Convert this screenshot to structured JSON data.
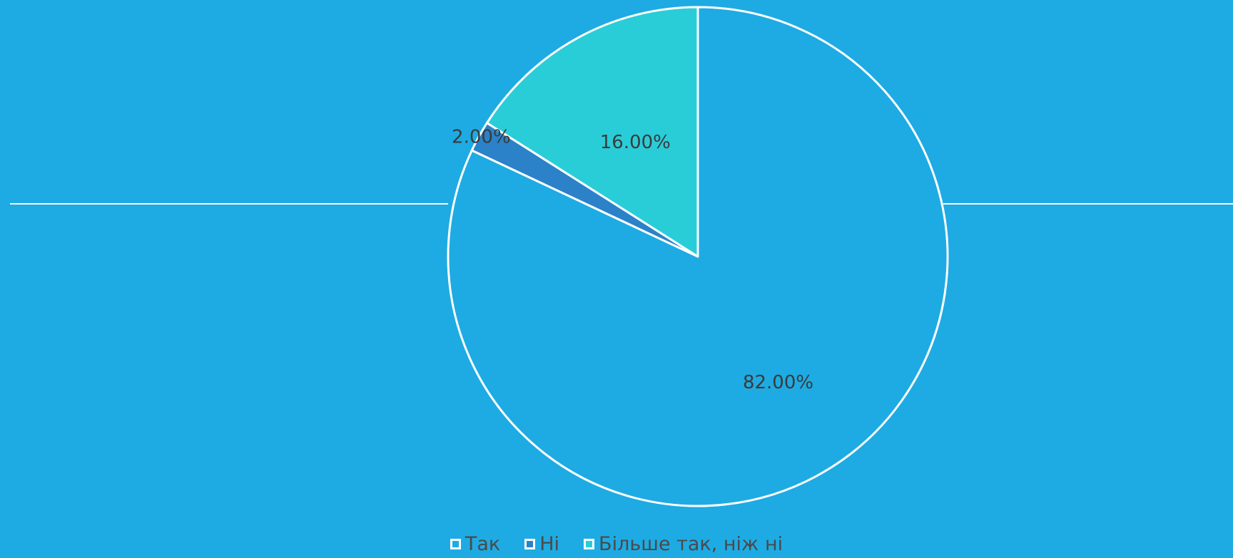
{
  "chart_data": {
    "type": "pie",
    "categories": [
      "Так",
      "Ні",
      "Більше так, ніж ні"
    ],
    "values": [
      82.0,
      2.0,
      16.0
    ],
    "data_labels": [
      "82.00%",
      "2.00%",
      "16.00%"
    ],
    "colors": [
      "#1eabe3",
      "#2b82c8",
      "#29cdd8"
    ],
    "background": "#1eabe3",
    "slice_border_color": "#ffffff",
    "start_angle_deg": 0,
    "direction": "clockwise",
    "legend_position": "bottom"
  }
}
